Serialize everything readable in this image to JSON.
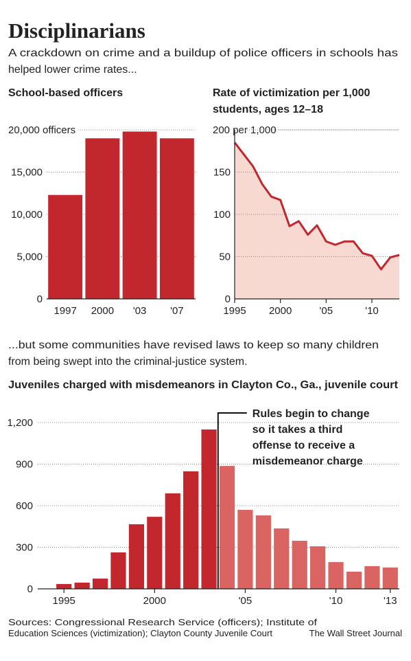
{
  "title": "Disciplinarians",
  "subtitle_lines": [
    "A crackdown on crime and a buildup of police officers in schools has",
    "helped lower crime rates..."
  ],
  "intertitle_lines": [
    "...but some communities have revised laws to keep so many children",
    "from being swept into the criminal-justice system."
  ],
  "sources_lines": [
    "Sources: Congressional Research Service (officers); Institute of",
    "Education Sciences (victimization); Clayton County Juvenile Court"
  ],
  "credit": "The Wall Street Journal",
  "chart_data": [
    {
      "type": "bar",
      "title": "School-based officers",
      "categories": [
        "1997",
        "2000",
        "'03",
        "'07"
      ],
      "values": [
        12300,
        19000,
        19800,
        19000
      ],
      "color": "#c1272d",
      "ylim": [
        0,
        20000
      ],
      "yticks": [
        0,
        {
          "value": 5000,
          "label": "5,000"
        },
        {
          "value": 10000,
          "label": "10,000"
        },
        {
          "value": 15000,
          "label": "15,000"
        },
        {
          "value": 20000,
          "label": "20,000 officers"
        }
      ],
      "grid": true
    },
    {
      "type": "line",
      "title_lines": [
        "Rate of victimization per 1,000",
        "students, ages 12–18"
      ],
      "x": [
        1995,
        1996,
        1997,
        1998,
        1999,
        2000,
        2001,
        2002,
        2003,
        2004,
        2005,
        2006,
        2007,
        2008,
        2009,
        2010,
        2011,
        2012,
        2013
      ],
      "values": [
        185,
        171,
        157,
        136,
        121,
        117,
        86,
        92,
        76,
        87,
        68,
        64,
        68,
        68,
        54,
        51,
        35,
        49,
        52
      ],
      "color": "#c1272d",
      "area": true,
      "area_color": "#f8d9d1",
      "xlim": [
        1995,
        2013
      ],
      "xticks": [
        1995,
        2000,
        {
          "value": 2005,
          "label": "'05"
        },
        {
          "value": 2010,
          "label": "'10"
        }
      ],
      "ylim": [
        0,
        200
      ],
      "yticks": [
        0,
        50,
        100,
        150,
        {
          "value": 200,
          "label": "200 per 1,000"
        }
      ],
      "grid": true
    },
    {
      "type": "bar",
      "title": "Juveniles charged with misdemeanors in Clayton Co., Ga., juvenile court",
      "categories": [
        "1995",
        null,
        null,
        null,
        null,
        "2000",
        null,
        null,
        null,
        null,
        "'05",
        null,
        null,
        null,
        null,
        "'10",
        null,
        null,
        "'13"
      ],
      "values": [
        35,
        45,
        74,
        263,
        466,
        520,
        689,
        848,
        1150,
        887,
        570,
        530,
        436,
        347,
        307,
        193,
        124,
        164,
        154
      ],
      "colors": [
        "#c1272d",
        "#c1272d",
        "#c1272d",
        "#c1272d",
        "#c1272d",
        "#c1272d",
        "#c1272d",
        "#c1272d",
        "#c1272d",
        "#da6461",
        "#da6461",
        "#da6461",
        "#da6461",
        "#da6461",
        "#da6461",
        "#da6461",
        "#da6461",
        "#da6461",
        "#da6461"
      ],
      "ylim": [
        0,
        1200
      ],
      "yticks": [
        0,
        300,
        600,
        900,
        {
          "value": 1200,
          "label": "1,200"
        }
      ],
      "grid": true,
      "annotation": [
        "Rules begin to change",
        "so it takes a third",
        "offense to receive a",
        "misdemeanor charge"
      ]
    }
  ]
}
